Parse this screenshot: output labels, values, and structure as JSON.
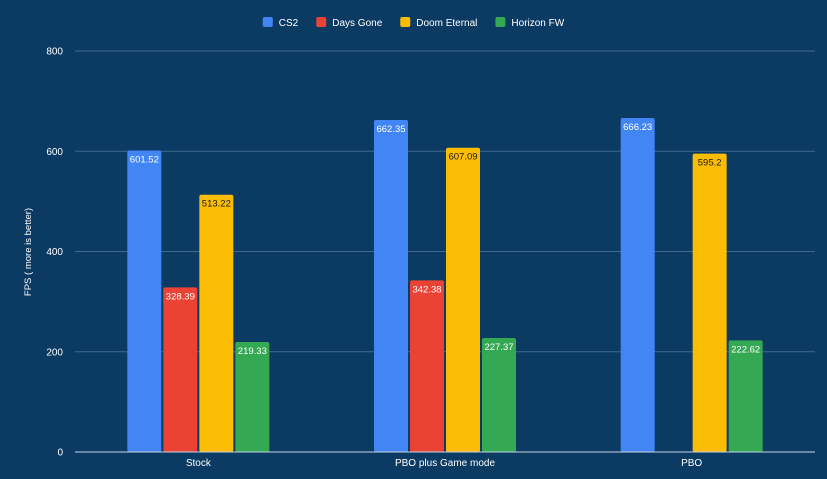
{
  "chart_data": {
    "type": "bar",
    "title": "",
    "xlabel": "",
    "ylabel": "FPS ( more is better)",
    "categories": [
      "Stock",
      "PBO plus Game mode",
      "PBO"
    ],
    "ylim": [
      0,
      800
    ],
    "yticks": [
      0,
      200,
      400,
      600,
      800
    ],
    "grid": true,
    "legend_position": "top",
    "series": [
      {
        "name": "CS2",
        "color": "#4285f4",
        "label_color": "#ffffff",
        "values": [
          601.52,
          662.35,
          666.23
        ]
      },
      {
        "name": "Days Gone",
        "color": "#ea4335",
        "label_color": "#ffffff",
        "values": [
          328.39,
          342.38,
          null
        ]
      },
      {
        "name": "Doom Eternal",
        "color": "#fbbc04",
        "label_color": "#1a1a1a",
        "values": [
          513.22,
          607.09,
          595.2
        ]
      },
      {
        "name": "Horizon FW",
        "color": "#34a853",
        "label_color": "#ffffff",
        "values": [
          219.33,
          227.37,
          222.62
        ]
      }
    ]
  }
}
